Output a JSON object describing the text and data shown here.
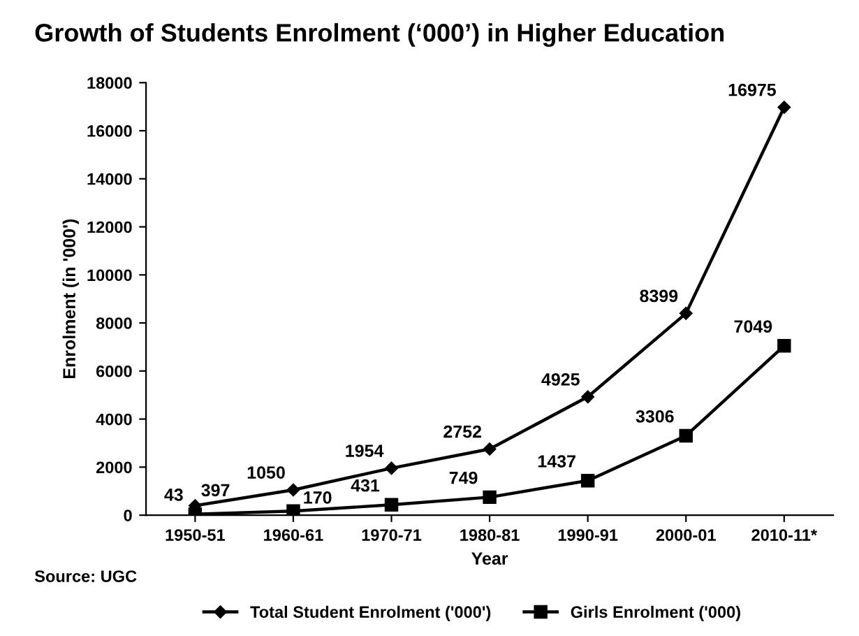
{
  "chart_data": {
    "type": "line",
    "title": "Growth of Students Enrolment (‘000’) in Higher Education",
    "xlabel": "Year",
    "ylabel": "Enrolment (in '000')",
    "categories": [
      "1950-51",
      "1960-61",
      "1970-71",
      "1980-81",
      "1990-91",
      "2000-01",
      "2010-11*"
    ],
    "series": [
      {
        "name": "Total Student Enrolment ('000')",
        "color": "#000000",
        "marker": "diamond",
        "values": [
          397,
          1050,
          1954,
          2752,
          4925,
          8399,
          16975
        ]
      },
      {
        "name": "Girls Enrolment ('000)",
        "color": "#000000",
        "marker": "square",
        "values": [
          43,
          170,
          431,
          749,
          1437,
          3306,
          7049
        ]
      }
    ],
    "ylim": [
      0,
      18000
    ],
    "yticks": [
      0,
      2000,
      4000,
      6000,
      8000,
      10000,
      12000,
      14000,
      16000,
      18000
    ],
    "data_labels": true,
    "grid": false,
    "legend": "bottom",
    "line_style": "solid",
    "annotations": [
      "Source: UGC"
    ]
  }
}
